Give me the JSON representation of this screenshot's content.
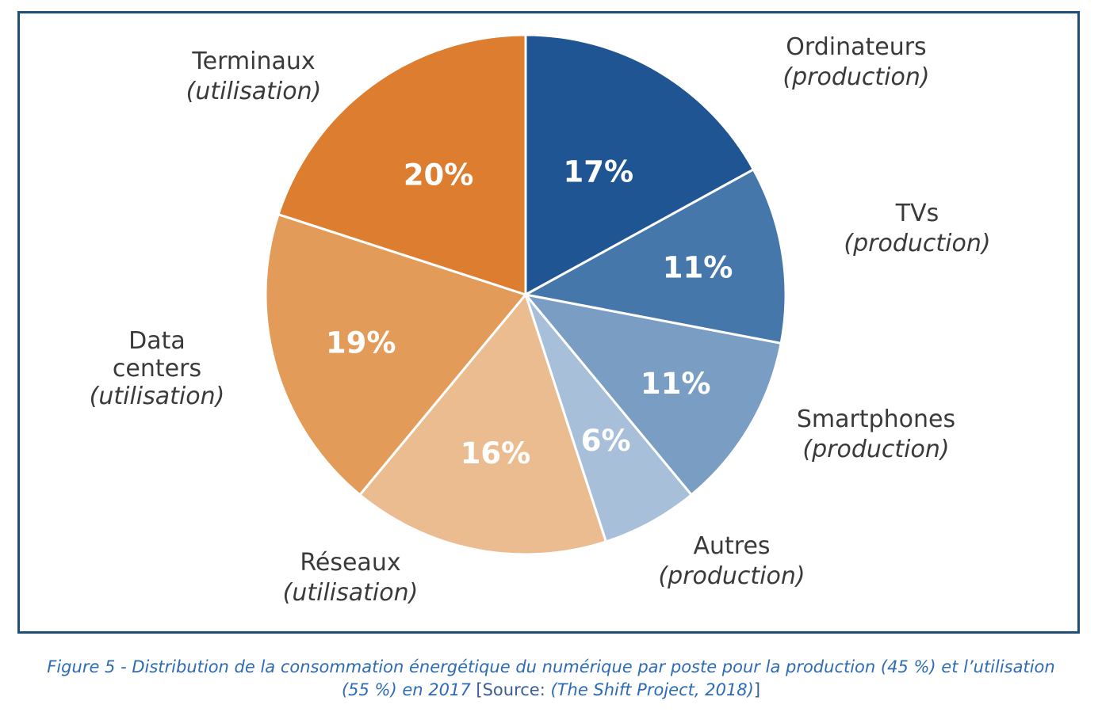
{
  "chart_data": {
    "type": "pie",
    "start_angle_deg": 0,
    "direction": "clockwise",
    "slices": [
      {
        "value": 17,
        "label": "17%",
        "name": "Ordinateurs",
        "sub": "(production)",
        "color": "#1f5592"
      },
      {
        "value": 11,
        "label": "11%",
        "name": "TVs",
        "sub": "(production)",
        "color": "#4677ab"
      },
      {
        "value": 11,
        "label": "11%",
        "name": "Smartphones",
        "sub": "(production)",
        "color": "#7a9dc4"
      },
      {
        "value": 6,
        "label": "6%",
        "name": "Autres",
        "sub": "(production)",
        "color": "#a8bfd9"
      },
      {
        "value": 16,
        "label": "16%",
        "name": "Réseaux",
        "sub": "(utilisation)",
        "color": "#ebbc8f"
      },
      {
        "value": 19,
        "label": "19%",
        "name": "Data centers",
        "sub": "(utilisation)",
        "color": "#e39b59"
      },
      {
        "value": 20,
        "label": "20%",
        "name": "Terminaux",
        "sub": "(utilisation)",
        "color": "#dc7d30"
      }
    ]
  },
  "caption": {
    "main": "Figure 5 - Distribution de la consommation énergétique du numérique par poste pour la production (45 %) et l’utilisation",
    "line2": "(55 %) en 2017",
    "source_prefix": "[Source:",
    "source": "(The Shift Project, 2018)",
    "source_suffix": "]"
  }
}
